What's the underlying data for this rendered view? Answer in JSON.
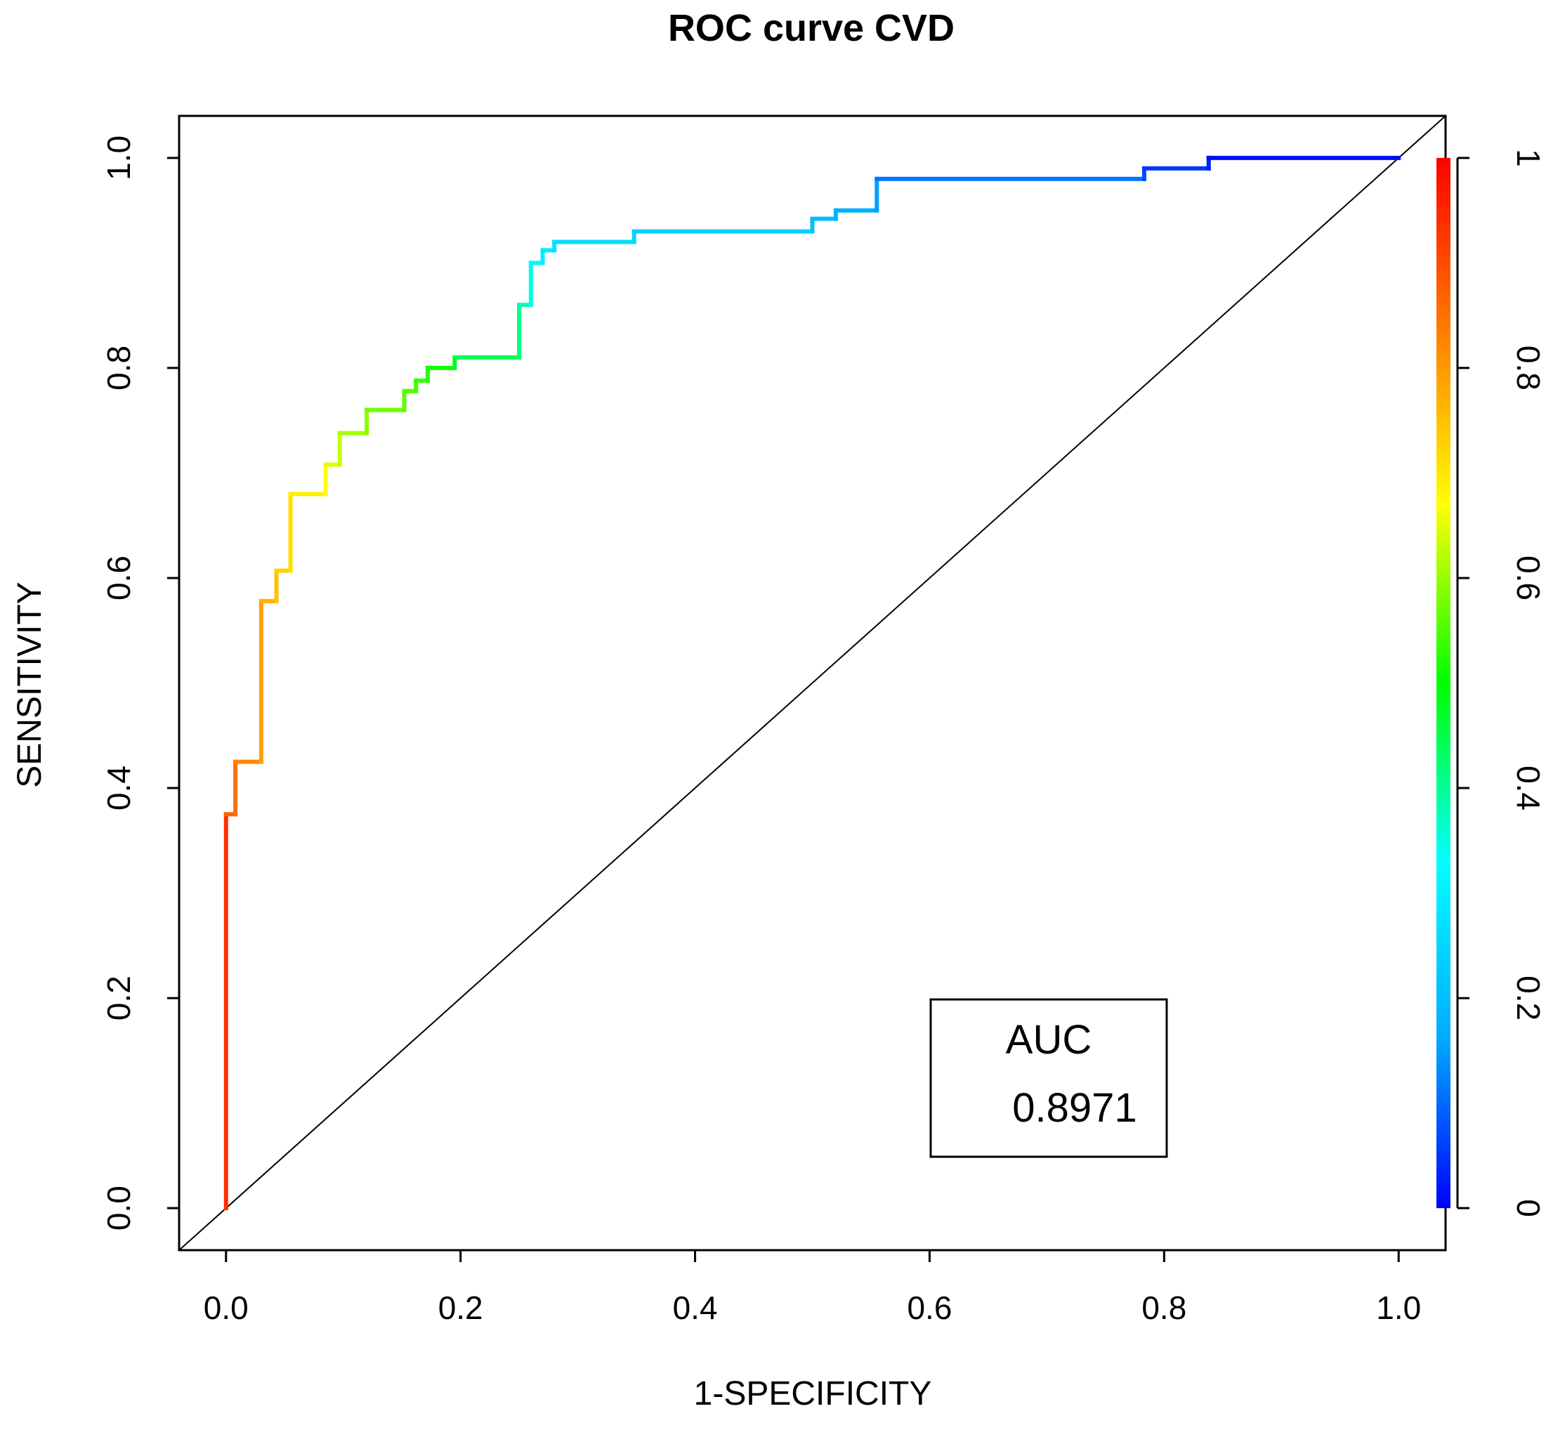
{
  "chart_data": {
    "type": "line",
    "title": "ROC curve CVD",
    "xlabel": "1-SPECIFICITY",
    "ylabel": "SENSITIVITY",
    "xlim": [
      -0.04,
      1.04
    ],
    "ylim": [
      -0.04,
      1.04
    ],
    "x_ticks": [
      0.0,
      0.2,
      0.4,
      0.6,
      0.8,
      1.0
    ],
    "x_tick_labels": [
      "0.0",
      "0.2",
      "0.4",
      "0.6",
      "0.8",
      "1.0"
    ],
    "y_ticks": [
      0.0,
      0.2,
      0.4,
      0.6,
      0.8,
      1.0
    ],
    "y_tick_labels": [
      "0.0",
      "0.2",
      "0.4",
      "0.6",
      "0.8",
      "1.0"
    ],
    "colorbar": {
      "ticks": [
        0,
        0.2,
        0.4,
        0.6,
        0.8,
        1
      ],
      "tick_labels": [
        "0",
        "0.2",
        "0.4",
        "0.6",
        "0.8",
        "1"
      ],
      "colors": [
        "#0000ff",
        "#00aaff",
        "#00ffff",
        "#00ff00",
        "#ffff00",
        "#ff8000",
        "#ff0000"
      ]
    },
    "reference_line": {
      "x": [
        0,
        1
      ],
      "y": [
        0,
        1
      ],
      "color": "#000000"
    },
    "legend": {
      "label": "AUC",
      "value": "0.8971",
      "position": "bottom-right"
    },
    "series": [
      {
        "name": "ROC",
        "x": [
          0.0,
          0.0,
          0.008,
          0.008,
          0.03,
          0.03,
          0.043,
          0.043,
          0.055,
          0.055,
          0.085,
          0.085,
          0.097,
          0.097,
          0.12,
          0.12,
          0.152,
          0.152,
          0.162,
          0.162,
          0.172,
          0.172,
          0.195,
          0.195,
          0.25,
          0.25,
          0.26,
          0.26,
          0.27,
          0.27,
          0.28,
          0.28,
          0.348,
          0.348,
          0.5,
          0.5,
          0.52,
          0.52,
          0.555,
          0.555,
          0.783,
          0.783,
          0.838,
          0.838,
          1.0
        ],
        "y": [
          0.0,
          0.375,
          0.375,
          0.425,
          0.425,
          0.578,
          0.578,
          0.607,
          0.607,
          0.68,
          0.68,
          0.708,
          0.708,
          0.738,
          0.738,
          0.76,
          0.76,
          0.778,
          0.778,
          0.788,
          0.788,
          0.8,
          0.8,
          0.81,
          0.81,
          0.86,
          0.86,
          0.9,
          0.9,
          0.912,
          0.912,
          0.92,
          0.92,
          0.93,
          0.93,
          0.942,
          0.942,
          0.95,
          0.95,
          0.98,
          0.98,
          0.99,
          0.99,
          1.0,
          1.0
        ],
        "thresholds": [
          1.0,
          0.88,
          0.86,
          0.84,
          0.8,
          0.78,
          0.76,
          0.74,
          0.72,
          0.7,
          0.68,
          0.66,
          0.64,
          0.62,
          0.6,
          0.58,
          0.57,
          0.56,
          0.55,
          0.54,
          0.53,
          0.52,
          0.5,
          0.46,
          0.43,
          0.4,
          0.36,
          0.33,
          0.3,
          0.29,
          0.28,
          0.27,
          0.26,
          0.25,
          0.22,
          0.2,
          0.19,
          0.18,
          0.16,
          0.14,
          0.08,
          0.06,
          0.04,
          0.02,
          0.0
        ]
      }
    ]
  }
}
